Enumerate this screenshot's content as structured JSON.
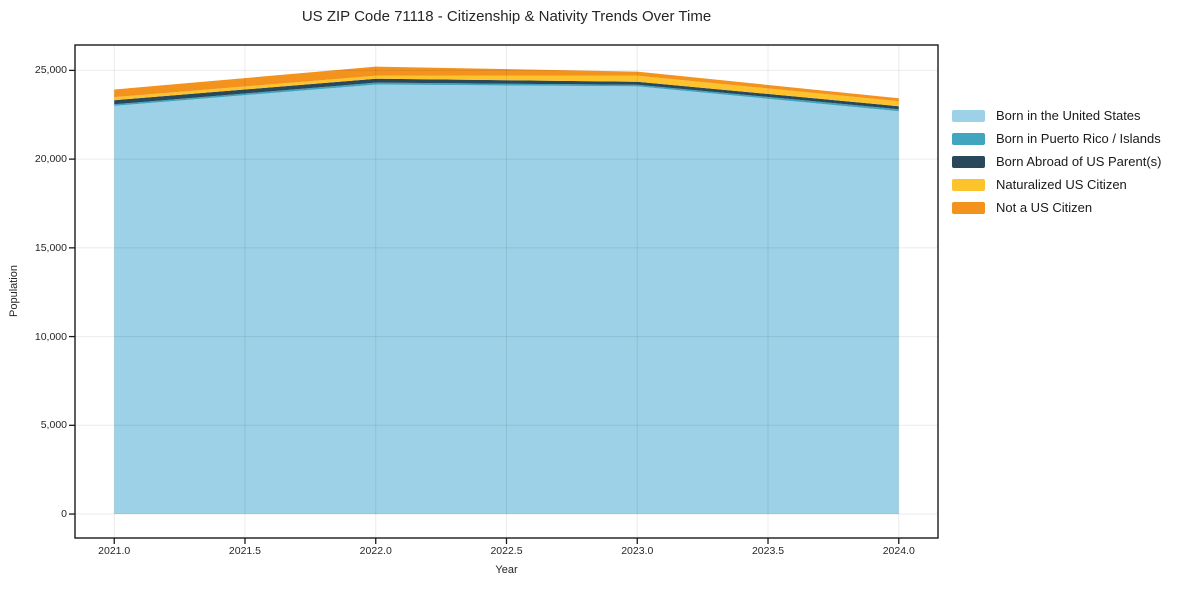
{
  "figure": {
    "title": "US ZIP Code 71118 - Citizenship & Nativity Trends Over Time",
    "xlabel": "Year",
    "ylabel": "Population"
  },
  "chart_data": {
    "type": "area",
    "stacked": true,
    "title": "US ZIP Code 71118 - Citizenship & Nativity Trends Over Time",
    "xlabel": "Year",
    "ylabel": "Population",
    "x": [
      2021,
      2022,
      2023,
      2024
    ],
    "series": [
      {
        "name": "Born in the United States",
        "color": "#9dd1e7",
        "values": [
          23000,
          24200,
          24100,
          22700
        ]
      },
      {
        "name": "Born in Puerto Rico / Islands",
        "color": "#41a5bf",
        "values": [
          90,
          110,
          90,
          110
        ]
      },
      {
        "name": "Born Abroad of US Parent(s)",
        "color": "#29485a",
        "values": [
          230,
          220,
          170,
          170
        ]
      },
      {
        "name": "Naturalized US Citizen",
        "color": "#fcc32d",
        "values": [
          170,
          170,
          340,
          280
        ]
      },
      {
        "name": "Not a US Citizen",
        "color": "#f4921e",
        "values": [
          430,
          510,
          230,
          170
        ]
      }
    ],
    "xlim": [
      2020.85,
      2024.15
    ],
    "ylim": [
      -1350,
      26430
    ],
    "x_ticks": {
      "values": [
        2021.0,
        2021.5,
        2022.0,
        2022.5,
        2023.0,
        2023.5,
        2024.0
      ],
      "labels": [
        "2021.0",
        "2021.5",
        "2022.0",
        "2022.5",
        "2023.0",
        "2023.5",
        "2024.0"
      ]
    },
    "y_ticks": {
      "values": [
        0,
        5000,
        10000,
        15000,
        20000,
        25000
      ],
      "labels": [
        "0",
        "5,000",
        "10,000",
        "15,000",
        "20,000",
        "25,000"
      ]
    },
    "grid": true,
    "legend_position": "right-outside",
    "colors": {
      "axis": "#1a1a1a",
      "grid": "rgba(0,0,0,0.08)",
      "text": "#262626",
      "background": "#ffffff"
    }
  }
}
